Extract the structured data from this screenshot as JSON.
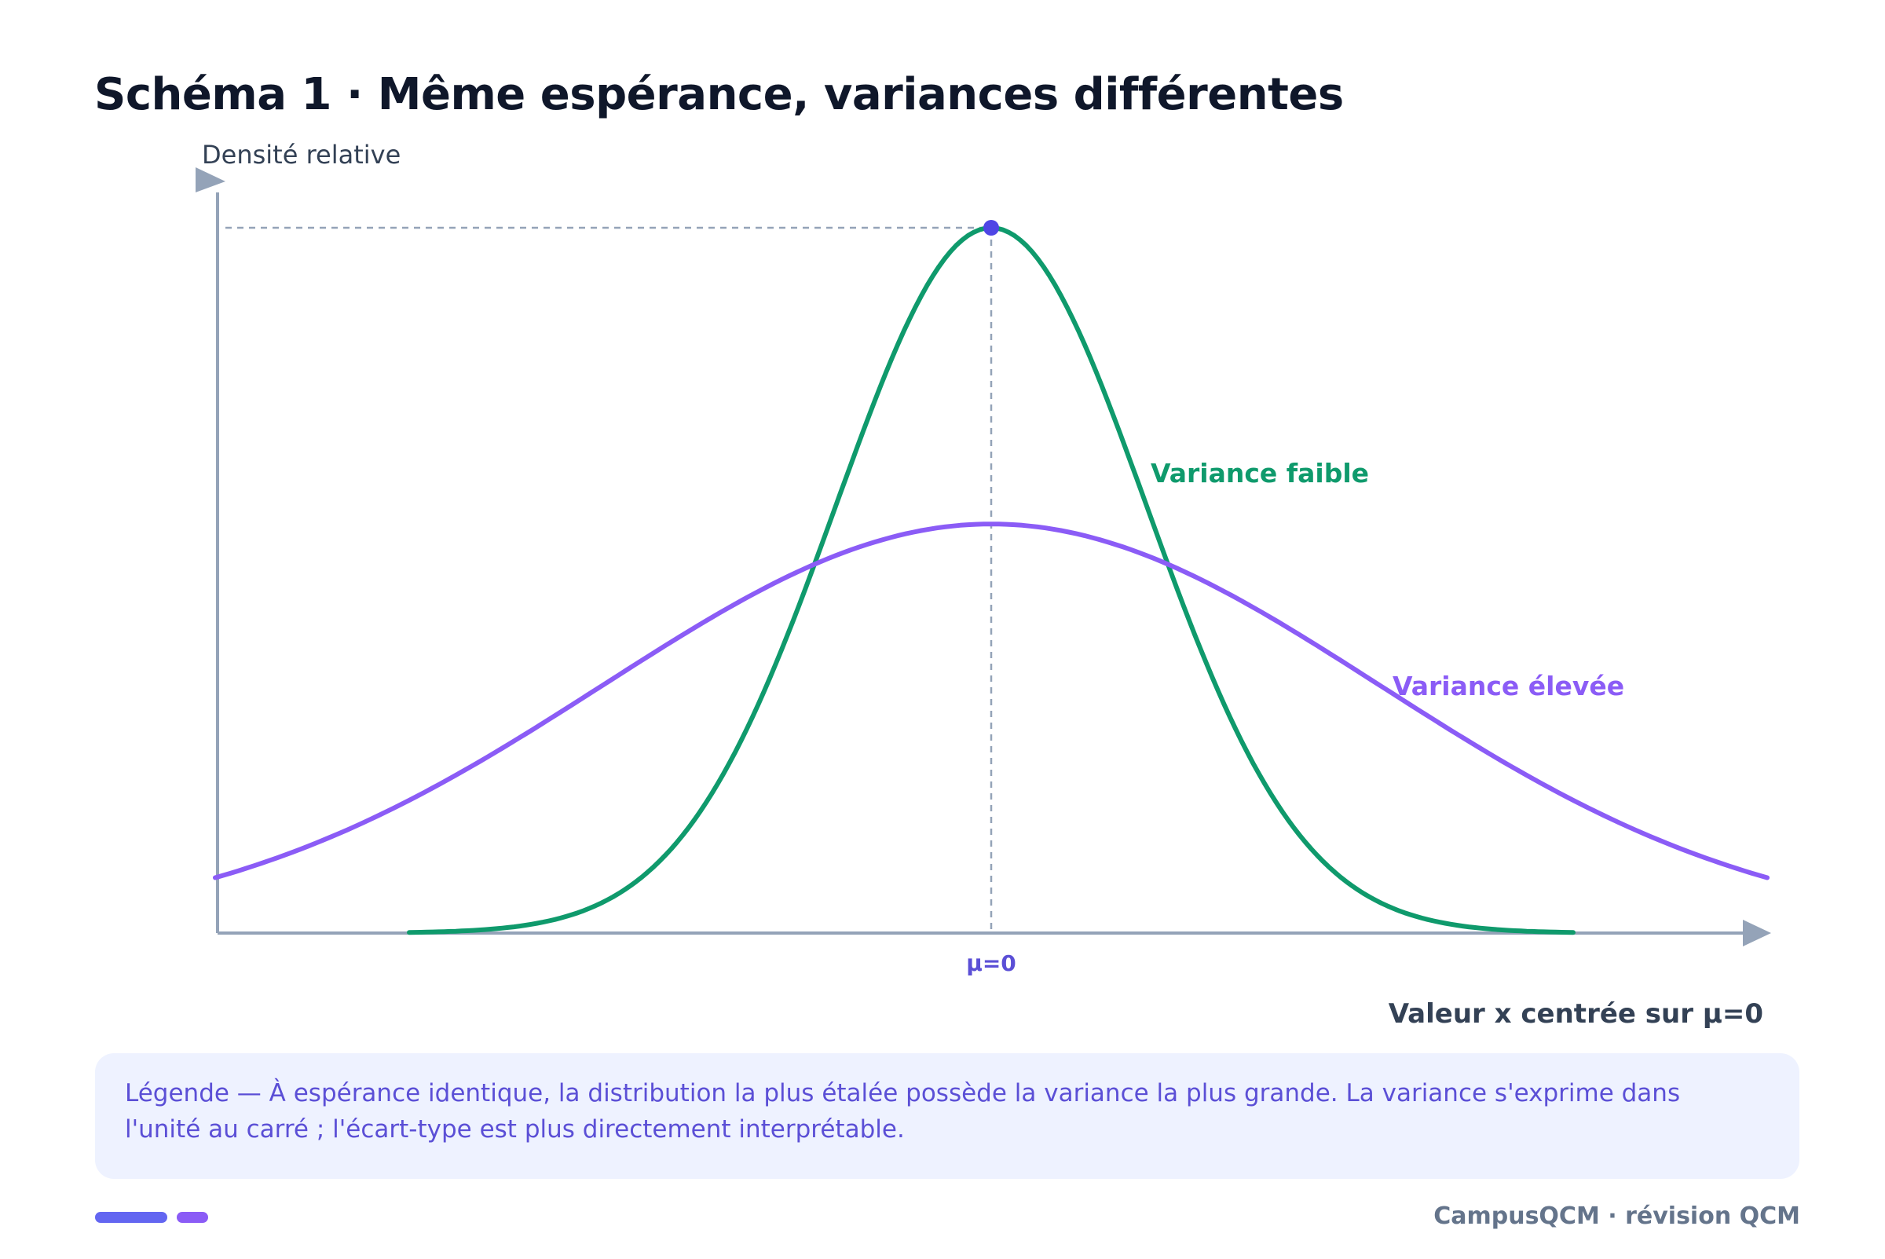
{
  "chart_data": {
    "type": "line",
    "title": "Schéma 1 · Même espérance, variances différentes",
    "ylabel": "Densité relative",
    "xlabel": "Valeur x centrée sur μ=0",
    "x_tick_label": "μ=0",
    "mean": 0,
    "xlim": [
      -4,
      4
    ],
    "ylim": [
      0,
      1
    ],
    "series": [
      {
        "name": "Variance faible",
        "color": "#0f9a6c",
        "sigma": 0.8,
        "x_range": [
          -3,
          3
        ],
        "peak_relative": 1.0
      },
      {
        "name": "Variance élevée",
        "color": "#8b5cf6",
        "sigma": 2.0,
        "x_range": [
          -4,
          4
        ],
        "peak_relative": 0.58
      }
    ],
    "peak_marker_color": "#4f46e5",
    "axis_color": "#94a3b8",
    "guide_color": "#94a3b8",
    "grid": false
  },
  "legend": {
    "text": "Légende — À espérance identique, la distribution la plus étalée possède la variance la plus grande. La variance s'exprime dans l'unité au carré ; l'écart-type est plus directement interprétable."
  },
  "footer": {
    "brand": "CampusQCM · révision QCM",
    "bar_colors": [
      "#6366f1",
      "#8b5cf6"
    ]
  }
}
